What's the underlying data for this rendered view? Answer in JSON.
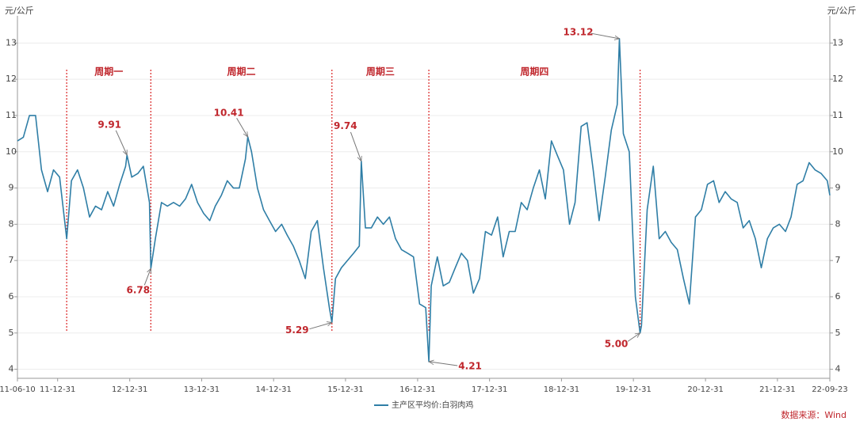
{
  "chart_data": {
    "type": "line",
    "ylabel": "元/公斤",
    "y2label": "元/公斤",
    "source": "数据来源：Wind",
    "xlim": [
      "11-06-10",
      "22-09-23"
    ],
    "xticks": [
      "11-06-10",
      "11-12-31",
      "12-12-31",
      "13-12-31",
      "14-12-31",
      "15-12-31",
      "16-12-31",
      "17-12-31",
      "18-12-31",
      "19-12-31",
      "20-12-31",
      "21-12-31",
      "22-09-23"
    ],
    "ylim": [
      3.75,
      13.75
    ],
    "yticks": [
      4,
      5,
      6,
      7,
      8,
      9,
      10,
      11,
      12,
      13
    ],
    "y2lim": [
      3.75,
      13.75
    ],
    "y2ticks": [
      4,
      5,
      6,
      7,
      8,
      9,
      10,
      11,
      12,
      13
    ],
    "grid": true,
    "legend": "bottom",
    "x": [
      "11-06-10",
      "11-07-10",
      "11-08-10",
      "11-09-10",
      "11-10-10",
      "11-11-10",
      "11-12-10",
      "12-01-10",
      "12-02-15",
      "12-03-10",
      "12-04-10",
      "12-05-10",
      "12-06-10",
      "12-07-10",
      "12-08-10",
      "12-09-10",
      "12-10-10",
      "12-11-10",
      "12-12-10",
      "12-12-17",
      "13-01-10",
      "13-02-10",
      "13-03-10",
      "13-04-10",
      "13-04-17",
      "13-05-10",
      "13-06-10",
      "13-07-10",
      "13-08-10",
      "13-09-10",
      "13-10-10",
      "13-11-10",
      "13-12-10",
      "14-01-10",
      "14-02-10",
      "14-03-10",
      "14-04-10",
      "14-05-10",
      "14-06-10",
      "14-07-10",
      "14-08-10",
      "14-08-22",
      "14-09-10",
      "14-10-10",
      "14-11-10",
      "14-12-10",
      "15-01-10",
      "15-02-10",
      "15-03-10",
      "15-04-10",
      "15-05-10",
      "15-06-10",
      "15-07-10",
      "15-08-10",
      "15-09-10",
      "15-10-10",
      "15-10-23",
      "15-11-10",
      "15-12-10",
      "16-01-10",
      "16-02-10",
      "16-03-10",
      "16-03-20",
      "16-04-10",
      "16-05-10",
      "16-06-10",
      "16-07-10",
      "16-08-10",
      "16-09-10",
      "16-10-10",
      "16-11-10",
      "16-12-10",
      "17-01-10",
      "17-02-10",
      "17-02-26",
      "17-03-10",
      "17-04-10",
      "17-05-10",
      "17-06-10",
      "17-07-10",
      "17-08-10",
      "17-09-10",
      "17-10-10",
      "17-11-10",
      "17-12-10",
      "18-01-10",
      "18-02-10",
      "18-03-10",
      "18-04-10",
      "18-05-10",
      "18-06-10",
      "18-07-10",
      "18-08-10",
      "18-09-10",
      "18-10-10",
      "18-11-10",
      "18-12-10",
      "19-01-10",
      "19-02-10",
      "19-03-10",
      "19-04-10",
      "19-05-10",
      "19-06-10",
      "19-07-10",
      "19-08-10",
      "19-09-10",
      "19-10-10",
      "19-10-21",
      "19-11-10",
      "19-12-10",
      "20-01-10",
      "20-02-03",
      "20-02-10",
      "20-03-10",
      "20-04-10",
      "20-05-10",
      "20-06-10",
      "20-07-10",
      "20-08-10",
      "20-09-10",
      "20-10-10",
      "20-11-10",
      "20-12-10",
      "21-01-10",
      "21-02-10",
      "21-03-10",
      "21-04-10",
      "21-05-10",
      "21-06-10",
      "21-07-10",
      "21-08-10",
      "21-09-10",
      "21-10-10",
      "21-11-10",
      "21-12-10",
      "22-01-10",
      "22-02-10",
      "22-03-10",
      "22-04-10",
      "22-05-10",
      "22-06-10",
      "22-07-10",
      "22-08-10",
      "22-09-10",
      "22-09-23"
    ],
    "series": [
      {
        "name": "主产区平均价:白羽肉鸡",
        "color": "#2f7ea6",
        "values": [
          10.3,
          10.4,
          11.0,
          11.0,
          9.5,
          8.9,
          9.5,
          9.3,
          7.6,
          9.2,
          9.5,
          9.0,
          8.2,
          8.5,
          8.4,
          8.9,
          8.5,
          9.1,
          9.6,
          9.91,
          9.3,
          9.4,
          9.6,
          8.6,
          6.78,
          7.6,
          8.6,
          8.5,
          8.6,
          8.5,
          8.7,
          9.1,
          8.6,
          8.3,
          8.1,
          8.5,
          8.8,
          9.2,
          9.0,
          9.0,
          9.8,
          10.41,
          10.0,
          9.0,
          8.4,
          8.1,
          7.8,
          8.0,
          7.7,
          7.4,
          7.0,
          6.5,
          7.8,
          8.1,
          6.8,
          5.7,
          5.29,
          6.5,
          6.8,
          7.0,
          7.2,
          7.4,
          9.74,
          7.9,
          7.9,
          8.2,
          8.0,
          8.2,
          7.6,
          7.3,
          7.2,
          7.1,
          5.8,
          5.7,
          4.21,
          6.3,
          7.1,
          6.3,
          6.4,
          6.8,
          7.2,
          7.0,
          6.1,
          6.5,
          7.8,
          7.7,
          8.2,
          7.1,
          7.8,
          7.8,
          8.6,
          8.4,
          9.0,
          9.5,
          8.7,
          10.3,
          9.9,
          9.5,
          8.0,
          8.6,
          10.7,
          10.8,
          9.5,
          8.1,
          9.3,
          10.6,
          11.3,
          13.12,
          10.5,
          10.0,
          6.0,
          5,
          5.2,
          8.4,
          9.6,
          7.6,
          7.8,
          7.5,
          7.3,
          6.5,
          5.8,
          8.2,
          8.4,
          9.1,
          9.2,
          8.6,
          8.9,
          8.7,
          8.6,
          7.9,
          8.1,
          7.6,
          6.8,
          7.6,
          7.9,
          8.0,
          7.8,
          8.2,
          9.1,
          9.2,
          9.7,
          9.5,
          9.4,
          9.2,
          8.8
        ]
      }
    ],
    "annotations": [
      {
        "x": "12-12-17",
        "value": 9.91
      },
      {
        "x": "13-04-17",
        "value": 6.78
      },
      {
        "x": "14-08-22",
        "value": 10.41
      },
      {
        "x": "15-10-23",
        "value": 5.29
      },
      {
        "x": "16-03-20",
        "value": 9.74
      },
      {
        "x": "17-02-26",
        "value": 4.21
      },
      {
        "x": "19-10-21",
        "value": 13.12
      },
      {
        "x": "20-02-03",
        "value": 5,
        "label": "5.00"
      }
    ],
    "cycles": [
      {
        "label": "周期一",
        "start": "12-02-15",
        "end": "13-04-17"
      },
      {
        "label": "周期二",
        "start": "13-04-17",
        "end": "15-10-23"
      },
      {
        "label": "周期三",
        "start": "15-10-23",
        "end": "17-02-26"
      },
      {
        "label": "周期四",
        "start": "17-02-26",
        "end": "20-02-03"
      }
    ]
  }
}
